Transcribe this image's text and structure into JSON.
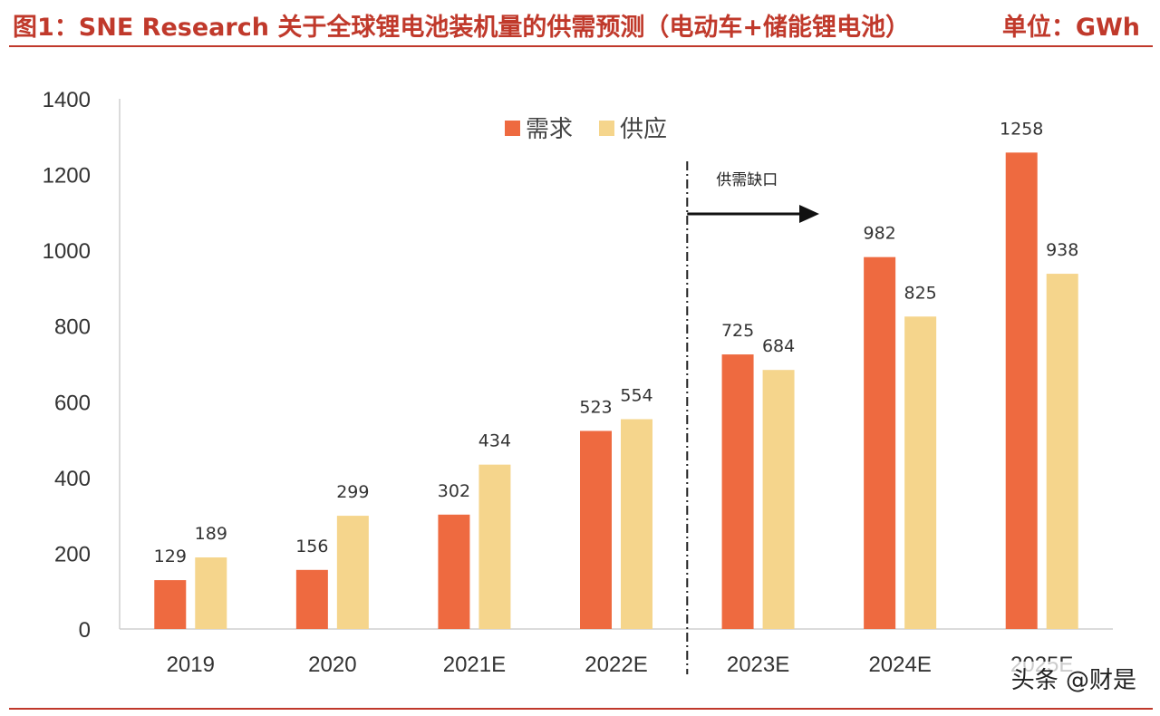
{
  "header": {
    "title": "图1：SNE Research 关于全球锂电池装机量的供需预测（电动车+储能锂电池）",
    "unit": "单位：GWh"
  },
  "chart_data": {
    "type": "bar",
    "categories": [
      "2019",
      "2020",
      "2021E",
      "2022E",
      "2023E",
      "2024E",
      "2025E"
    ],
    "series": [
      {
        "name": "需求",
        "values": [
          129,
          156,
          302,
          523,
          725,
          982,
          1258
        ],
        "color": "#ee6a40"
      },
      {
        "name": "供应",
        "values": [
          189,
          299,
          434,
          554,
          684,
          825,
          938
        ],
        "color": "#f5d58c"
      }
    ],
    "ylim": [
      0,
      1400
    ],
    "yticks": [
      "0",
      "200",
      "400",
      "600",
      "800",
      "1000",
      "1200",
      "1400"
    ],
    "legend_position": "top-center",
    "annotation": {
      "text": "供需缺口",
      "starts_before_category": "2023E"
    }
  },
  "watermark": "头条 @财是"
}
